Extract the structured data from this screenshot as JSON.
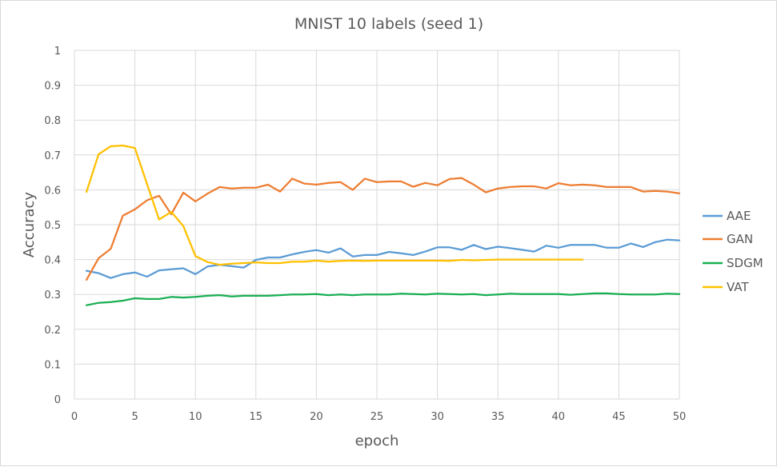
{
  "chart_data": {
    "type": "line",
    "title": "MNIST 10 labels (seed 1)",
    "xlabel": "epoch",
    "ylabel": "Accuracy",
    "xlim": [
      0,
      50
    ],
    "ylim": [
      0,
      1
    ],
    "xticks": [
      "0",
      "5",
      "10",
      "15",
      "20",
      "25",
      "30",
      "35",
      "40",
      "45",
      "50"
    ],
    "yticks": [
      "0",
      "0.1",
      "0.2",
      "0.3",
      "0.4",
      "0.5",
      "0.6",
      "0.7",
      "0.8",
      "0.9",
      "1"
    ],
    "grid": true,
    "legend_position": "right",
    "series": [
      {
        "name": "AAE",
        "color": "#5b9bd5",
        "x": [
          1,
          2,
          3,
          4,
          5,
          6,
          7,
          8,
          9,
          10,
          11,
          12,
          13,
          14,
          15,
          16,
          17,
          18,
          19,
          20,
          21,
          22,
          23,
          24,
          25,
          26,
          27,
          28,
          29,
          30,
          31,
          32,
          33,
          34,
          35,
          36,
          37,
          38,
          39,
          40,
          41,
          42,
          43,
          44,
          45,
          46,
          47,
          48,
          49,
          50
        ],
        "values": [
          0.368,
          0.361,
          0.347,
          0.358,
          0.363,
          0.351,
          0.369,
          0.372,
          0.375,
          0.358,
          0.38,
          0.385,
          0.381,
          0.377,
          0.399,
          0.406,
          0.406,
          0.415,
          0.422,
          0.427,
          0.42,
          0.432,
          0.409,
          0.413,
          0.413,
          0.422,
          0.418,
          0.413,
          0.423,
          0.435,
          0.435,
          0.428,
          0.442,
          0.43,
          0.437,
          0.433,
          0.428,
          0.423,
          0.44,
          0.434,
          0.442,
          0.442,
          0.442,
          0.434,
          0.434,
          0.446,
          0.436,
          0.45,
          0.457,
          0.455
        ]
      },
      {
        "name": "GAN",
        "color": "#ed7d31",
        "x": [
          1,
          2,
          3,
          4,
          5,
          6,
          7,
          8,
          9,
          10,
          11,
          12,
          13,
          14,
          15,
          16,
          17,
          18,
          19,
          20,
          21,
          22,
          23,
          24,
          25,
          26,
          27,
          28,
          29,
          30,
          31,
          32,
          33,
          34,
          35,
          36,
          37,
          38,
          39,
          40,
          41,
          42,
          43,
          44,
          45,
          46,
          47,
          48,
          49,
          50
        ],
        "values": [
          0.342,
          0.404,
          0.431,
          0.526,
          0.544,
          0.57,
          0.583,
          0.53,
          0.592,
          0.567,
          0.589,
          0.608,
          0.604,
          0.606,
          0.606,
          0.615,
          0.595,
          0.632,
          0.618,
          0.615,
          0.62,
          0.622,
          0.6,
          0.632,
          0.622,
          0.624,
          0.624,
          0.609,
          0.62,
          0.613,
          0.631,
          0.634,
          0.615,
          0.593,
          0.604,
          0.608,
          0.61,
          0.61,
          0.604,
          0.619,
          0.613,
          0.615,
          0.613,
          0.608,
          0.608,
          0.608,
          0.595,
          0.597,
          0.595,
          0.59
        ]
      },
      {
        "name": "SDGM",
        "color": "#1aaf54",
        "x": [
          1,
          2,
          3,
          4,
          5,
          6,
          7,
          8,
          9,
          10,
          11,
          12,
          13,
          14,
          15,
          16,
          17,
          18,
          19,
          20,
          21,
          22,
          23,
          24,
          25,
          26,
          27,
          28,
          29,
          30,
          31,
          32,
          33,
          34,
          35,
          36,
          37,
          38,
          39,
          40,
          41,
          42,
          43,
          44,
          45,
          46,
          47,
          48,
          49,
          50
        ],
        "values": [
          0.269,
          0.276,
          0.278,
          0.282,
          0.289,
          0.287,
          0.287,
          0.293,
          0.291,
          0.293,
          0.296,
          0.298,
          0.294,
          0.296,
          0.296,
          0.296,
          0.298,
          0.3,
          0.3,
          0.301,
          0.298,
          0.3,
          0.298,
          0.3,
          0.3,
          0.3,
          0.302,
          0.301,
          0.3,
          0.302,
          0.301,
          0.3,
          0.301,
          0.298,
          0.3,
          0.302,
          0.301,
          0.301,
          0.301,
          0.301,
          0.299,
          0.301,
          0.303,
          0.303,
          0.301,
          0.3,
          0.3,
          0.3,
          0.302,
          0.301
        ]
      },
      {
        "name": "VAT",
        "color": "#ffc000",
        "x": [
          1,
          2,
          3,
          4,
          5,
          6,
          7,
          8,
          9,
          10,
          11,
          12,
          13,
          14,
          15,
          16,
          17,
          18,
          19,
          20,
          21,
          22,
          23,
          24,
          25,
          26,
          27,
          28,
          29,
          30,
          31,
          32,
          33,
          34,
          35,
          36,
          37,
          38,
          39,
          40,
          41,
          42
        ],
        "values": [
          0.594,
          0.702,
          0.725,
          0.727,
          0.72,
          0.617,
          0.515,
          0.537,
          0.496,
          0.41,
          0.393,
          0.385,
          0.388,
          0.39,
          0.392,
          0.39,
          0.39,
          0.394,
          0.394,
          0.397,
          0.394,
          0.396,
          0.397,
          0.396,
          0.397,
          0.397,
          0.397,
          0.397,
          0.397,
          0.397,
          0.396,
          0.399,
          0.398,
          0.399,
          0.4,
          0.4,
          0.4,
          0.4,
          0.4,
          0.4,
          0.4,
          0.4
        ]
      }
    ]
  }
}
